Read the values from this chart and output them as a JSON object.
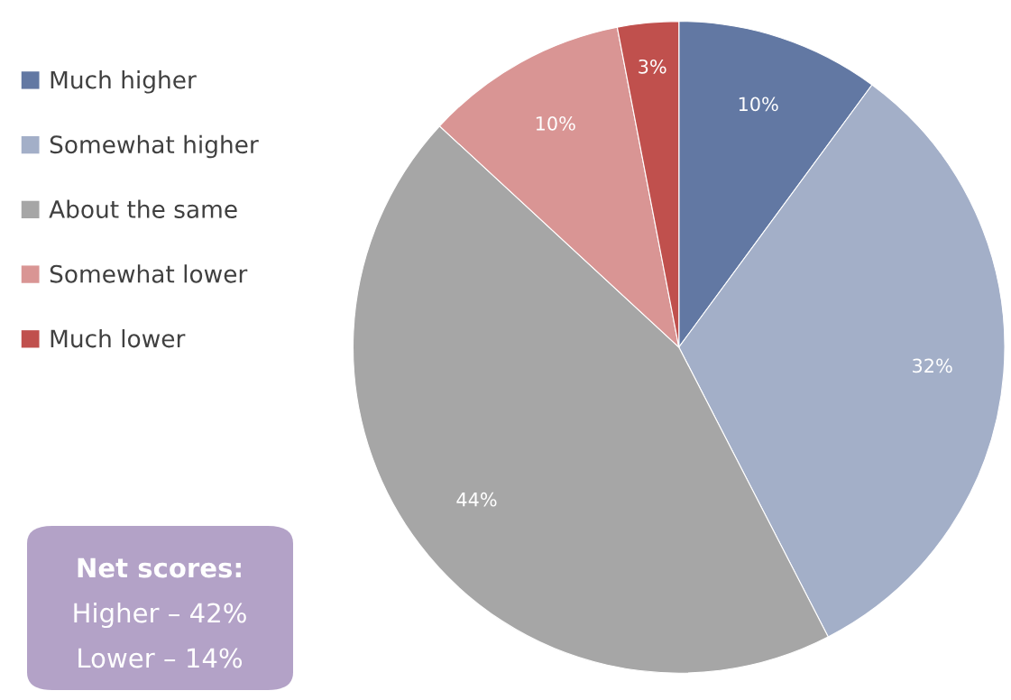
{
  "chart_data": {
    "type": "pie",
    "categories": [
      "Much higher",
      "Somewhat higher",
      "About the same",
      "Somewhat lower",
      "Much lower"
    ],
    "values": [
      10,
      32,
      44,
      10,
      3
    ],
    "colors": [
      "#6278a3",
      "#a3afc8",
      "#a6a6a6",
      "#d99594",
      "#c0504d"
    ],
    "value_labels": [
      "10%",
      "32%",
      "44%",
      "10%",
      "3%"
    ],
    "legend": "left",
    "annotations": [
      "Net scores:",
      "Higher – 42%",
      "Lower – 14%"
    ]
  }
}
